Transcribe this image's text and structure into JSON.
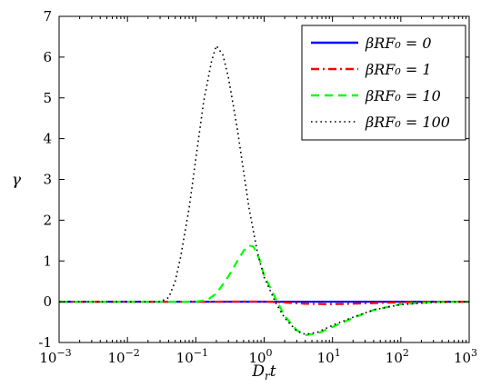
{
  "chart_data": {
    "type": "line",
    "title": "",
    "xlabel": "D_r t",
    "ylabel": "γ",
    "xscale": "log",
    "xlim": [
      0.001,
      1000
    ],
    "ylim": [
      -1,
      7
    ],
    "x_ticks": [
      {
        "value": 0.001,
        "base": "10",
        "exp": "−3"
      },
      {
        "value": 0.01,
        "base": "10",
        "exp": "−2"
      },
      {
        "value": 0.1,
        "base": "10",
        "exp": "−1"
      },
      {
        "value": 1,
        "base": "10",
        "exp": "0"
      },
      {
        "value": 10,
        "base": "10",
        "exp": "1"
      },
      {
        "value": 100,
        "base": "10",
        "exp": "2"
      },
      {
        "value": 1000,
        "base": "10",
        "exp": "3"
      }
    ],
    "y_ticks": [
      {
        "value": -1,
        "label": "-1"
      },
      {
        "value": 0,
        "label": "0"
      },
      {
        "value": 1,
        "label": "1"
      },
      {
        "value": 2,
        "label": "2"
      },
      {
        "value": 3,
        "label": "3"
      },
      {
        "value": 4,
        "label": "4"
      },
      {
        "value": 5,
        "label": "5"
      },
      {
        "value": 6,
        "label": "6"
      },
      {
        "value": 7,
        "label": "7"
      }
    ],
    "grid": false,
    "legend_position": "top-right",
    "series": [
      {
        "name": "βRF₀ = 0",
        "color": "#0000ff",
        "dash": "solid",
        "x": [
          0.001,
          0.01,
          0.1,
          1,
          10,
          100,
          1000
        ],
        "y": [
          0,
          0,
          0,
          0,
          0,
          0,
          0
        ]
      },
      {
        "name": "βRF₀ = 1",
        "color": "#ff0000",
        "dash": "dashdot",
        "x": [
          0.001,
          0.1,
          0.5,
          1,
          2,
          4,
          8,
          15,
          30,
          60,
          120,
          300,
          1000
        ],
        "y": [
          0,
          0,
          0.005,
          0.004,
          -0.02,
          -0.05,
          -0.06,
          -0.055,
          -0.04,
          -0.025,
          -0.012,
          -0.004,
          0
        ]
      },
      {
        "name": "βRF₀ = 10",
        "color": "#00ff00",
        "dash": "dash",
        "x": [
          0.001,
          0.1,
          0.15,
          0.2,
          0.3,
          0.4,
          0.5,
          0.6,
          0.7,
          0.85,
          1,
          1.5,
          2,
          3,
          4,
          6,
          10,
          20,
          40,
          100,
          300,
          1000
        ],
        "y": [
          0,
          0,
          0.05,
          0.2,
          0.62,
          0.98,
          1.25,
          1.38,
          1.35,
          1.05,
          0.65,
          0.05,
          -0.35,
          -0.7,
          -0.82,
          -0.78,
          -0.62,
          -0.4,
          -0.2,
          -0.06,
          -0.01,
          0
        ]
      },
      {
        "name": "βRF₀ = 100",
        "color": "#000000",
        "dash": "dot",
        "x": [
          0.001,
          0.03,
          0.04,
          0.05,
          0.06,
          0.08,
          0.1,
          0.13,
          0.17,
          0.2,
          0.25,
          0.3,
          0.4,
          0.5,
          0.6,
          0.8,
          1,
          1.5,
          2,
          3,
          4,
          6,
          10,
          20,
          40,
          100,
          300,
          1000
        ],
        "y": [
          0,
          0,
          0.1,
          0.5,
          1.1,
          2.3,
          3.5,
          4.9,
          5.9,
          6.28,
          6.05,
          5.5,
          4.3,
          3.2,
          2.3,
          1.2,
          0.6,
          -0.05,
          -0.4,
          -0.72,
          -0.8,
          -0.75,
          -0.58,
          -0.38,
          -0.2,
          -0.07,
          -0.015,
          0
        ]
      }
    ]
  }
}
